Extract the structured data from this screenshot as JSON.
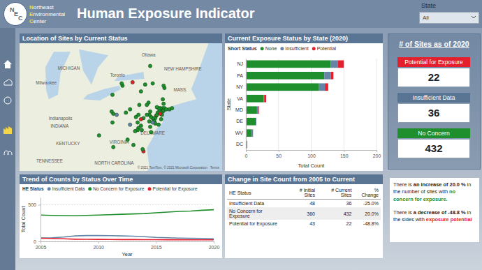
{
  "header": {
    "logo_letters": [
      "N",
      "E",
      "C"
    ],
    "org_lines": [
      "Northeast",
      "Environmental",
      "Center"
    ],
    "title": "Human Exposure Indicator",
    "filter_label": "State",
    "filter_value": "All"
  },
  "map": {
    "title": "Location of Sites by Current Status",
    "labels": [
      {
        "text": "MICHIGAN",
        "lon": -85.2,
        "lat": 44.3
      },
      {
        "text": "Toronto",
        "lon": -79.4,
        "lat": 43.7
      },
      {
        "text": "Ottawa",
        "lon": -75.7,
        "lat": 45.4
      },
      {
        "text": "NEW HAMPSHIRE",
        "lon": -71.6,
        "lat": 44.2
      },
      {
        "text": "Milwaukee",
        "lon": -87.9,
        "lat": 43.0
      },
      {
        "text": "MASS.",
        "lon": -71.9,
        "lat": 42.4
      },
      {
        "text": "Indianapolis",
        "lon": -86.2,
        "lat": 39.8
      },
      {
        "text": "INDIANA",
        "lon": -86.3,
        "lat": 39.1
      },
      {
        "text": "VIRGINIA",
        "lon": -79.2,
        "lat": 37.6
      },
      {
        "text": "DELAWARE",
        "lon": -75.2,
        "lat": 38.5
      },
      {
        "text": "KENTUCKY",
        "lon": -85.3,
        "lat": 37.5
      },
      {
        "text": "TENNESSEE",
        "lon": -87.5,
        "lat": 35.8
      },
      {
        "text": "NORTH CAROLINA",
        "lon": -79.8,
        "lat": 35.6
      }
    ],
    "attribution": "© 2021 TomTom, © 2021 Microsoft Corporation",
    "terms": "Terms",
    "sites": {
      "lon": [
        -74.2,
        -74.1,
        -74.4,
        -74.0,
        -74.3,
        -74.6,
        -74.8,
        -74.7,
        -75.1,
        -75.0,
        -74.9,
        -74.5,
        -74.2,
        -74.1,
        -74.3,
        -74.5,
        -74.7,
        -75.2,
        -74.9,
        -74.0,
        -75.2,
        -75.4,
        -75.6,
        -75.5,
        -75.9,
        -76.3,
        -76.9,
        -77.2,
        -76.6,
        -75.7,
        -75.9,
        -76.8,
        -78.4,
        -79.9,
        -80.1,
        -79.5,
        -80.0,
        -77.9,
        -73.9,
        -73.8,
        -73.6,
        -73.2,
        -72.9,
        -73.9,
        -74.0,
        -73.8,
        -73.9,
        -75.2,
        -76.1,
        -76.6,
        -77.6,
        -78.8,
        -78.9,
        -75.5,
        -76.6,
        -76.9,
        -77.0,
        -76.5,
        -75.6,
        -75.5,
        -75.4,
        -77.0,
        -77.3,
        -77.5,
        -76.3,
        -76.4,
        -79.9,
        -78.2,
        -81.6,
        -80.0,
        -77.9
      ],
      "lat": [
        40.7,
        40.8,
        40.6,
        40.9,
        40.9,
        40.5,
        40.2,
        40.3,
        39.9,
        39.7,
        39.5,
        39.4,
        39.9,
        40.3,
        40.4,
        40.9,
        41.0,
        39.6,
        40.0,
        40.6,
        40.0,
        40.1,
        40.3,
        40.6,
        40.3,
        40.0,
        40.3,
        40.1,
        39.9,
        41.4,
        41.2,
        41.2,
        40.5,
        40.4,
        40.6,
        40.3,
        42.1,
        40.8,
        40.7,
        40.9,
        40.8,
        40.8,
        40.9,
        41.3,
        41.7,
        42.7,
        42.9,
        43.1,
        43.0,
        42.4,
        43.2,
        42.9,
        43.1,
        44.6,
        39.3,
        39.1,
        39.6,
        38.9,
        39.7,
        39.2,
        38.7,
        38.9,
        38.8,
        37.5,
        36.9,
        37.1,
        37.3,
        38.0,
        38.4,
        39.6,
        39.4
      ],
      "status": [
        "None",
        "None",
        "None",
        "None",
        "None",
        "None",
        "Potential",
        "None",
        "None",
        "None",
        "None",
        "None",
        "None",
        "None",
        "Potential",
        "None",
        "None",
        "Insufficient",
        "None",
        "None",
        "None",
        "None",
        "None",
        "None",
        "None",
        "None",
        "None",
        "None",
        "Potential",
        "None",
        "None",
        "None",
        "None",
        "None",
        "None",
        "Insufficient",
        "None",
        "None",
        "None",
        "None",
        "None",
        "None",
        "None",
        "None",
        "None",
        "None",
        "None",
        "None",
        "None",
        "None",
        "Potential",
        "None",
        "None",
        "None",
        "None",
        "None",
        "None",
        "None",
        "None",
        "None",
        "None",
        "None",
        "None",
        "None",
        "Potential",
        "None",
        "None",
        "None",
        "None",
        "None",
        "Insufficient"
      ]
    }
  },
  "chart_data": [
    {
      "type": "bar",
      "title": "Current Exposure Status by State (2020)",
      "orientation": "horizontal",
      "stacked": true,
      "legend_title": "Short Status",
      "legend": "top",
      "categories": [
        "NJ",
        "PA",
        "NY",
        "VA",
        "MD",
        "DE",
        "WV",
        "DC"
      ],
      "series": [
        {
          "name": "None",
          "color": "#1f8f2e",
          "values": [
            130,
            120,
            112,
            27,
            17,
            15,
            9,
            2
          ]
        },
        {
          "name": "Insufficient",
          "color": "#6584a8",
          "values": [
            11,
            10,
            9,
            1,
            2,
            1,
            2,
            0
          ]
        },
        {
          "name": "Potential",
          "color": "#e5202e",
          "values": [
            9,
            4,
            5,
            3,
            1,
            0,
            0,
            0
          ]
        }
      ],
      "xlim": [
        0,
        200
      ],
      "xticks": [
        0,
        50,
        100,
        150,
        200
      ],
      "xlabel": "Total Count",
      "ylabel": "State",
      "grid": true
    },
    {
      "type": "line",
      "title": "Trend of Counts by Status Over Time",
      "legend_title": "HE Status",
      "legend": "top",
      "x": [
        2005,
        2006,
        2007,
        2008,
        2009,
        2010,
        2011,
        2012,
        2013,
        2014,
        2015,
        2016,
        2017,
        2018,
        2019,
        2020
      ],
      "series": [
        {
          "name": "Insufficient Data",
          "color": "#6584a8",
          "values": [
            48,
            50,
            60,
            75,
            80,
            80,
            78,
            75,
            72,
            65,
            55,
            50,
            45,
            42,
            40,
            36
          ]
        },
        {
          "name": "No Concern for Exposure",
          "color": "#1f8f2e",
          "values": [
            360,
            355,
            352,
            350,
            355,
            360,
            365,
            370,
            375,
            380,
            390,
            400,
            410,
            415,
            425,
            432
          ]
        },
        {
          "name": "Potential for Exposure",
          "color": "#e5202e",
          "values": [
            43,
            40,
            35,
            30,
            28,
            27,
            26,
            25,
            25,
            24,
            24,
            23,
            23,
            22,
            22,
            22
          ]
        }
      ],
      "xlim": [
        2005,
        2020
      ],
      "xticks": [
        2005,
        2010,
        2015,
        2020
      ],
      "ylim": [
        0,
        600
      ],
      "yticks": [
        0,
        500
      ],
      "xlabel": "Year",
      "ylabel": "Total Count",
      "grid": true
    }
  ],
  "cards": {
    "title": "# of Sites as of 2020",
    "items": [
      {
        "label": "Potential for Exposure",
        "value": 22,
        "color": "#e5202e"
      },
      {
        "label": "Insufficient Data",
        "value": 36,
        "color": "#5a7594"
      },
      {
        "label": "No Concern",
        "value": 432,
        "color": "#1f8f2e"
      }
    ]
  },
  "table": {
    "title": "Change in Site Count from 2005 to Current",
    "columns": [
      "HE Status",
      "# Initial Sites",
      "# Current Sites",
      "% Change"
    ],
    "rows": [
      [
        "Insufficient Data",
        "48",
        "36",
        "-25.0%"
      ],
      [
        "No Concern for Exposure",
        "360",
        "432",
        "20.0%"
      ],
      [
        "Potential for Exposure",
        "43",
        "22",
        "-48.8%"
      ]
    ]
  },
  "note": {
    "paragraphs": [
      [
        {
          "text": "There is "
        },
        {
          "text": "an increase of 20.0 %",
          "bold": true
        },
        {
          "text": " in the number of sites with "
        },
        {
          "text": "no concern for exposure.",
          "bold": true,
          "color": "#1f8f2e"
        }
      ],
      [
        {
          "text": "There is "
        },
        {
          "text": "a decrease of -48.8 %",
          "bold": true
        },
        {
          "text": " in the sides with "
        },
        {
          "text": "exposure potential",
          "bold": true,
          "color": "#e5202e"
        }
      ]
    ]
  }
}
